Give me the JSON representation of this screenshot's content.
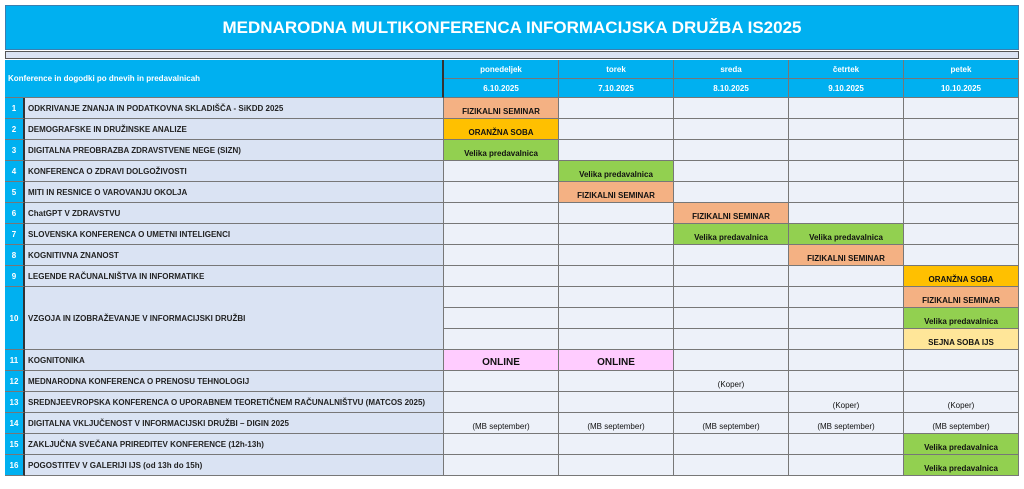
{
  "title": "MEDNARODNA MULTIKONFERENCA INFORMACIJSKA DRUŽBA IS2025",
  "header_label": "Konference in dogodki po dnevih in predavalnicah",
  "days": [
    {
      "name": "ponedeljek",
      "date": "6.10.2025"
    },
    {
      "name": "torek",
      "date": "7.10.2025"
    },
    {
      "name": "sreda",
      "date": "8.10.2025"
    },
    {
      "name": "četrtek",
      "date": "9.10.2025"
    },
    {
      "name": "petek",
      "date": "10.10.2025"
    }
  ],
  "colors": {
    "header": "#00b0f0",
    "fizikalni": "#f4b183",
    "oranzna": "#ffc000",
    "velika": "#92d050",
    "online": "#ffccff",
    "sejna": "#ffe699",
    "cell": "#edf1f9",
    "name": "#dae3f3"
  },
  "rows": [
    {
      "num": "1",
      "name": "ODKRIVANJE ZNANJA IN PODATKOVNA SKLADIŠČA - SiKDD 2025",
      "cells": [
        {
          "text": "FIZIKALNI SEMINAR",
          "color": "fizikalni"
        },
        {},
        {},
        {},
        {}
      ]
    },
    {
      "num": "2",
      "name": "DEMOGRAFSKE IN DRUŽINSKE ANALIZE",
      "cells": [
        {
          "text": "ORANŽNA SOBA",
          "color": "oranzna"
        },
        {},
        {},
        {},
        {}
      ]
    },
    {
      "num": "3",
      "name": "DIGITALNA PREOBRAZBA ZDRAVSTVENE NEGE (SIZN)",
      "cells": [
        {
          "text": "Velika predavalnica",
          "color": "velika"
        },
        {},
        {},
        {},
        {}
      ]
    },
    {
      "num": "4",
      "name": "KONFERENCA O ZDRAVI DOLGOŽIVOSTI",
      "cells": [
        {},
        {
          "text": "Velika predavalnica",
          "color": "velika"
        },
        {},
        {},
        {}
      ]
    },
    {
      "num": "5",
      "name": "MITI IN RESNICE O VAROVANJU OKOLJA",
      "cells": [
        {},
        {
          "text": "FIZIKALNI SEMINAR",
          "color": "fizikalni"
        },
        {},
        {},
        {}
      ]
    },
    {
      "num": "6",
      "name": "ChatGPT V ZDRAVSTVU",
      "cells": [
        {},
        {},
        {
          "text": "FIZIKALNI SEMINAR",
          "color": "fizikalni"
        },
        {},
        {}
      ]
    },
    {
      "num": "7",
      "name": "SLOVENSKA KONFERENCA O UMETNI INTELIGENCI",
      "cells": [
        {},
        {},
        {
          "text": "Velika predavalnica",
          "color": "velika"
        },
        {
          "text": "Velika predavalnica",
          "color": "velika"
        },
        {}
      ]
    },
    {
      "num": "8",
      "name": "KOGNITIVNA ZNANOST",
      "cells": [
        {},
        {},
        {},
        {
          "text": "FIZIKALNI SEMINAR",
          "color": "fizikalni"
        },
        {}
      ]
    },
    {
      "num": "9",
      "name": "LEGENDE RAČUNALNIŠTVA IN INFORMATIKE",
      "cells": [
        {},
        {},
        {},
        {},
        {
          "text": "ORANŽNA SOBA",
          "color": "oranzna"
        }
      ]
    },
    {
      "num": "10",
      "name": "VZGOJA IN IZOBRAŽEVANJE V INFORMACIJSKI DRUŽBI",
      "sub": 3,
      "cells": [
        [
          {},
          {},
          {}
        ],
        [
          {},
          {},
          {}
        ],
        [
          {},
          {},
          {}
        ],
        [
          {},
          {},
          {}
        ],
        [
          {
            "text": "FIZIKALNI SEMINAR",
            "color": "fizikalni"
          },
          {
            "text": "Velika predavalnica",
            "color": "velika"
          },
          {
            "text": "SEJNA SOBA IJS",
            "color": "sejna"
          }
        ]
      ]
    },
    {
      "num": "11",
      "name": "KOGNITONIKA",
      "cells": [
        {
          "text": "ONLINE",
          "color": "online",
          "style": "online"
        },
        {
          "text": "ONLINE",
          "color": "online",
          "style": "online"
        },
        {},
        {},
        {}
      ]
    },
    {
      "num": "12",
      "name": "MEDNARODNA KONFERENCA O PRENOSU TEHNOLOGIJ",
      "cells": [
        {},
        {},
        {
          "text": "(Koper)",
          "style": "plain"
        },
        {},
        {}
      ]
    },
    {
      "num": "13",
      "name": "SREDNJEEVROPSKA KONFERENCA O UPORABNEM TEORETIČNEM RAČUNALNIŠTVU (MATCOS 2025)",
      "cells": [
        {},
        {},
        {},
        {
          "text": "(Koper)",
          "style": "plain"
        },
        {
          "text": "(Koper)",
          "style": "plain"
        }
      ]
    },
    {
      "num": "14",
      "name": "DIGITALNA VKLJUČENOST V INFORMACIJSKI DRUŽBI – DIGIN 2025",
      "cells": [
        {
          "text": "(MB september)",
          "style": "plain"
        },
        {
          "text": "(MB september)",
          "style": "plain"
        },
        {
          "text": "(MB september)",
          "style": "plain"
        },
        {
          "text": "(MB september)",
          "style": "plain"
        },
        {
          "text": "(MB september)",
          "style": "plain"
        }
      ]
    },
    {
      "num": "15",
      "name": "ZAKLJUČNA SVEČANA PRIREDITEV KONFERENCE  (12h-13h)",
      "cells": [
        {},
        {},
        {},
        {},
        {
          "text": "Velika predavalnica",
          "color": "velika"
        }
      ]
    },
    {
      "num": "16",
      "name": "POGOSTITEV V GALERIJI IJS          (od 13h do 15h)",
      "cells": [
        {},
        {},
        {},
        {},
        {
          "text": "Velika predavalnica",
          "color": "velika"
        }
      ]
    }
  ]
}
